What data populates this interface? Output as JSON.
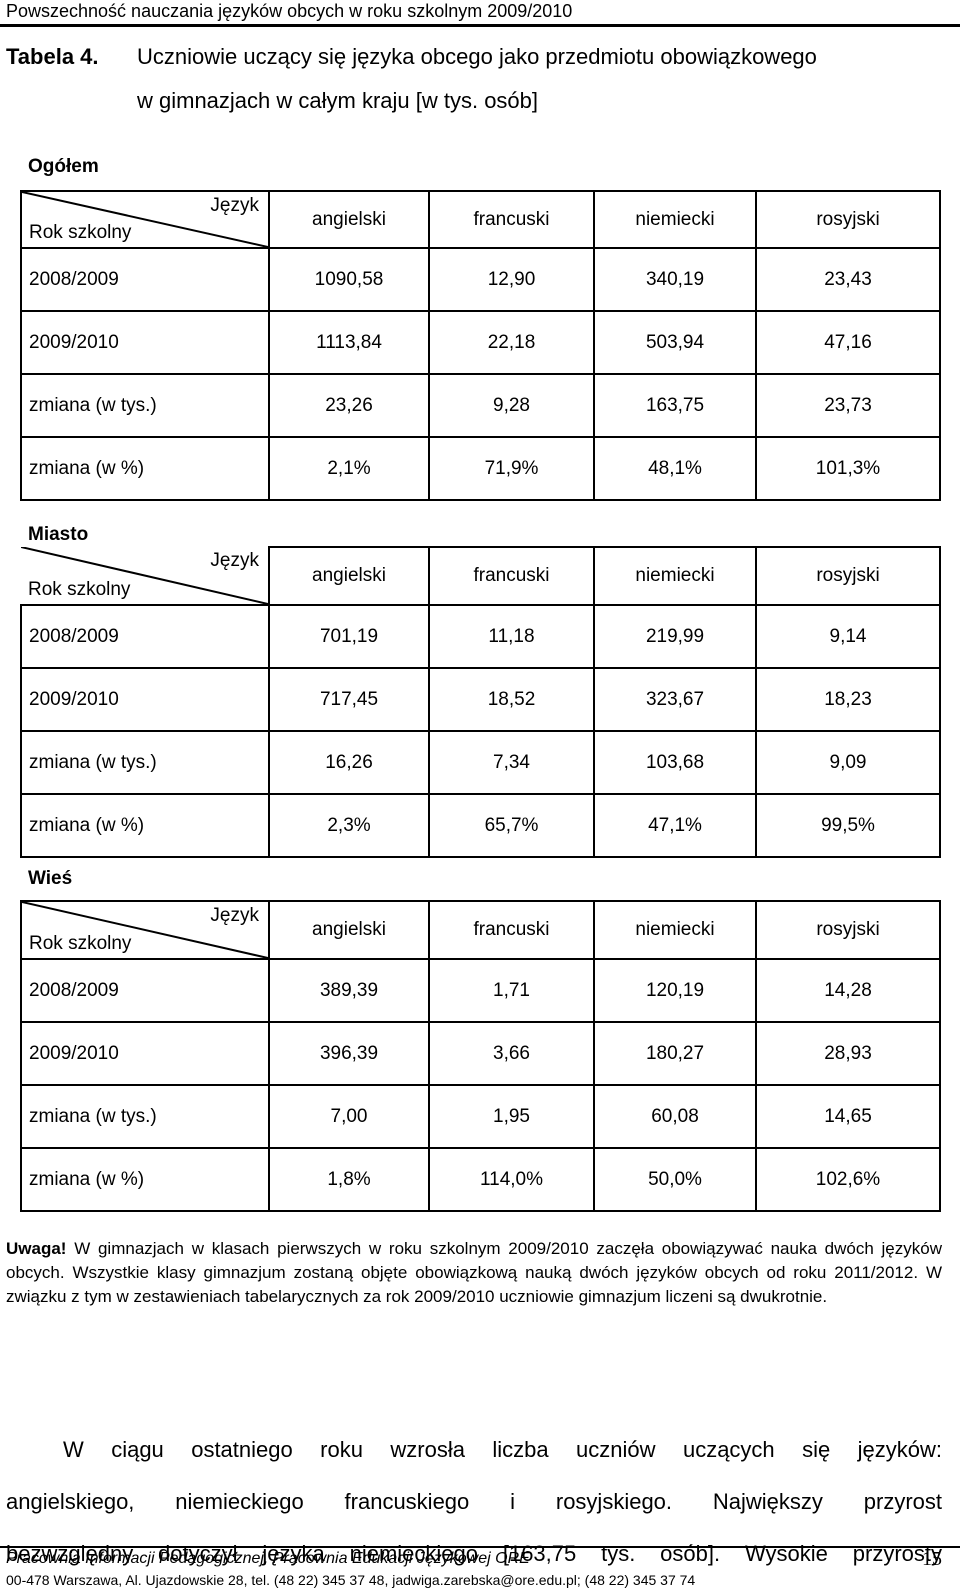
{
  "header": {
    "title": "Powszechność nauczania języków obcych w roku szkolnym 2009/2010"
  },
  "caption": {
    "label": "Tabela 4.",
    "line1": "Uczniowie uczący się języka obcego jako przedmiotu obowiązkowego",
    "line2": "w gimnazjach w całym kraju [w tys. osób]"
  },
  "sections": [
    {
      "title": "Ogółem",
      "corner_top": "Język",
      "corner_bottom": "Rok szkolny",
      "columns": [
        "angielski",
        "francuski",
        "niemiecki",
        "rosyjski"
      ],
      "rows": [
        {
          "label": "2008/2009",
          "cells": [
            "1090,58",
            "12,90",
            "340,19",
            "23,43"
          ]
        },
        {
          "label": "2009/2010",
          "cells": [
            "1113,84",
            "22,18",
            "503,94",
            "47,16"
          ]
        },
        {
          "label": "zmiana (w tys.)",
          "cells": [
            "23,26",
            "9,28",
            "163,75",
            "23,73"
          ]
        },
        {
          "label": "zmiana (w %)",
          "cells": [
            "2,1%",
            "71,9%",
            "48,1%",
            "101,3%"
          ]
        }
      ]
    },
    {
      "title": "Miasto",
      "corner_top": "Język",
      "corner_bottom": "Rok szkolny",
      "columns": [
        "angielski",
        "francuski",
        "niemiecki",
        "rosyjski"
      ],
      "rows": [
        {
          "label": "2008/2009",
          "cells": [
            "701,19",
            "11,18",
            "219,99",
            "9,14"
          ]
        },
        {
          "label": "2009/2010",
          "cells": [
            "717,45",
            "18,52",
            "323,67",
            "18,23"
          ]
        },
        {
          "label": "zmiana (w tys.)",
          "cells": [
            "16,26",
            "7,34",
            "103,68",
            "9,09"
          ]
        },
        {
          "label": "zmiana (w %)",
          "cells": [
            "2,3%",
            "65,7%",
            "47,1%",
            "99,5%"
          ]
        }
      ]
    },
    {
      "title": "Wieś",
      "corner_top": "Język",
      "corner_bottom": "Rok szkolny",
      "columns": [
        "angielski",
        "francuski",
        "niemiecki",
        "rosyjski"
      ],
      "rows": [
        {
          "label": "2008/2009",
          "cells": [
            "389,39",
            "1,71",
            "120,19",
            "14,28"
          ]
        },
        {
          "label": "2009/2010",
          "cells": [
            "396,39",
            "3,66",
            "180,27",
            "28,93"
          ]
        },
        {
          "label": "zmiana (w tys.)",
          "cells": [
            "7,00",
            "1,95",
            "60,08",
            "14,65"
          ]
        },
        {
          "label": "zmiana (w %)",
          "cells": [
            "1,8%",
            "114,0%",
            "50,0%",
            "102,6%"
          ]
        }
      ]
    }
  ],
  "note": {
    "label": "Uwaga!",
    "text": "W gimnazjach w klasach pierwszych w roku szkolnym 2009/2010 zaczęła obowiązywać nauka dwóch języków obcych. Wszystkie klasy gimnazjum zostaną objęte obowiązkową nauką dwóch języków obcych od roku 2011/2012. W związku z tym w zestawieniach tabelarycznych za rok 2009/2010 uczniowie gimnazjum liczeni są dwukrotnie."
  },
  "body": {
    "line1": "W ciągu ostatniego roku wzrosła liczba uczniów uczących się języków:",
    "line2": "angielskiego, niemieckiego francuskiego i rosyjskiego. Największy przyrost",
    "line3": "bezwzględny dotyczył języka niemieckiego [163,75 tys. osób]. Wysokie przyrosty"
  },
  "footer": {
    "line1": "Pracownia Informacji Pedagogicznej, Pracownia Edukacji Językowej ORE",
    "line2": "00-478 Warszawa, Al. Ujazdowskie 28, tel. (48 22) 345 37 48, jadwiga.zarebska@ore.edu.pl; (48 22) 345 37 74",
    "page": "15"
  }
}
